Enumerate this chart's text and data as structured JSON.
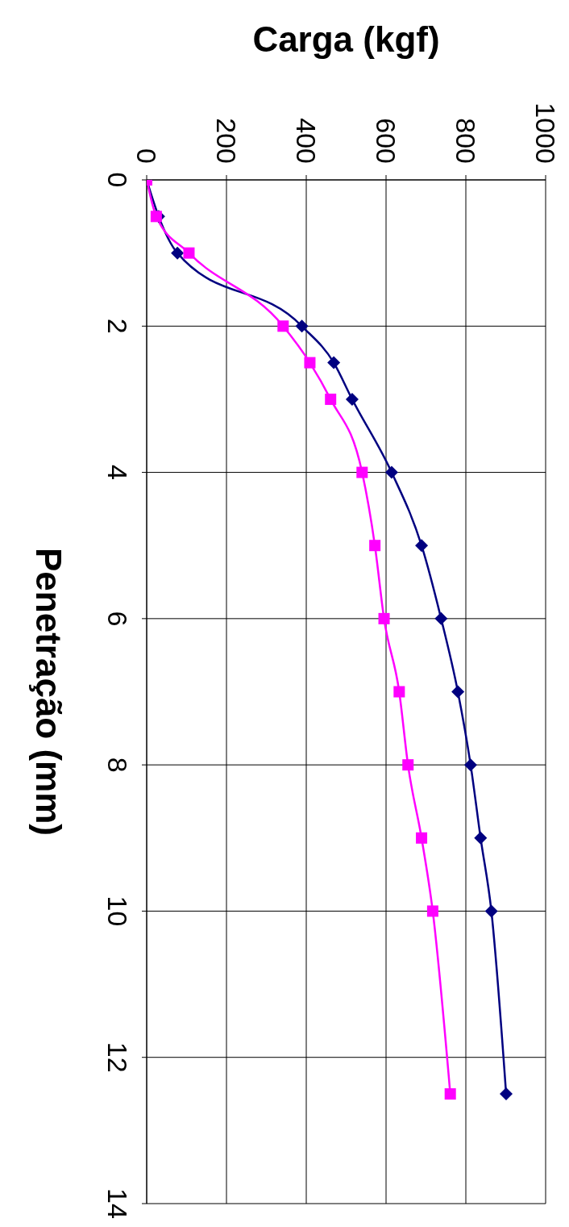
{
  "chart_data": {
    "type": "line",
    "xlabel": "Carga (kgf)",
    "ylabel": "Penetração (mm)",
    "series": [
      {
        "color": "#000080",
        "marker": "diamond",
        "x": [
          0,
          30,
          77,
          389,
          469,
          515,
          614,
          689,
          738,
          780,
          812,
          837,
          864,
          901
        ],
        "values": [
          0,
          0.5,
          1,
          2,
          2.5,
          3,
          4,
          5,
          6,
          7,
          8,
          9,
          10,
          12.5
        ]
      },
      {
        "color": "#ff00ff",
        "marker": "square",
        "x": [
          0,
          24,
          106,
          342,
          409,
          461,
          540,
          572,
          595,
          633,
          655,
          689,
          717,
          761
        ],
        "values": [
          0,
          0.5,
          1,
          2,
          2.5,
          3,
          4,
          5,
          6,
          7,
          8,
          9,
          10,
          12.5
        ]
      }
    ],
    "xlim": [
      0,
      1000
    ],
    "xticks": [
      0,
      200,
      400,
      600,
      800,
      1000
    ],
    "ylim": [
      14,
      0
    ],
    "yticks": [
      0,
      2,
      4,
      6,
      8,
      10,
      12,
      14
    ],
    "grid": true,
    "legend": false
  }
}
